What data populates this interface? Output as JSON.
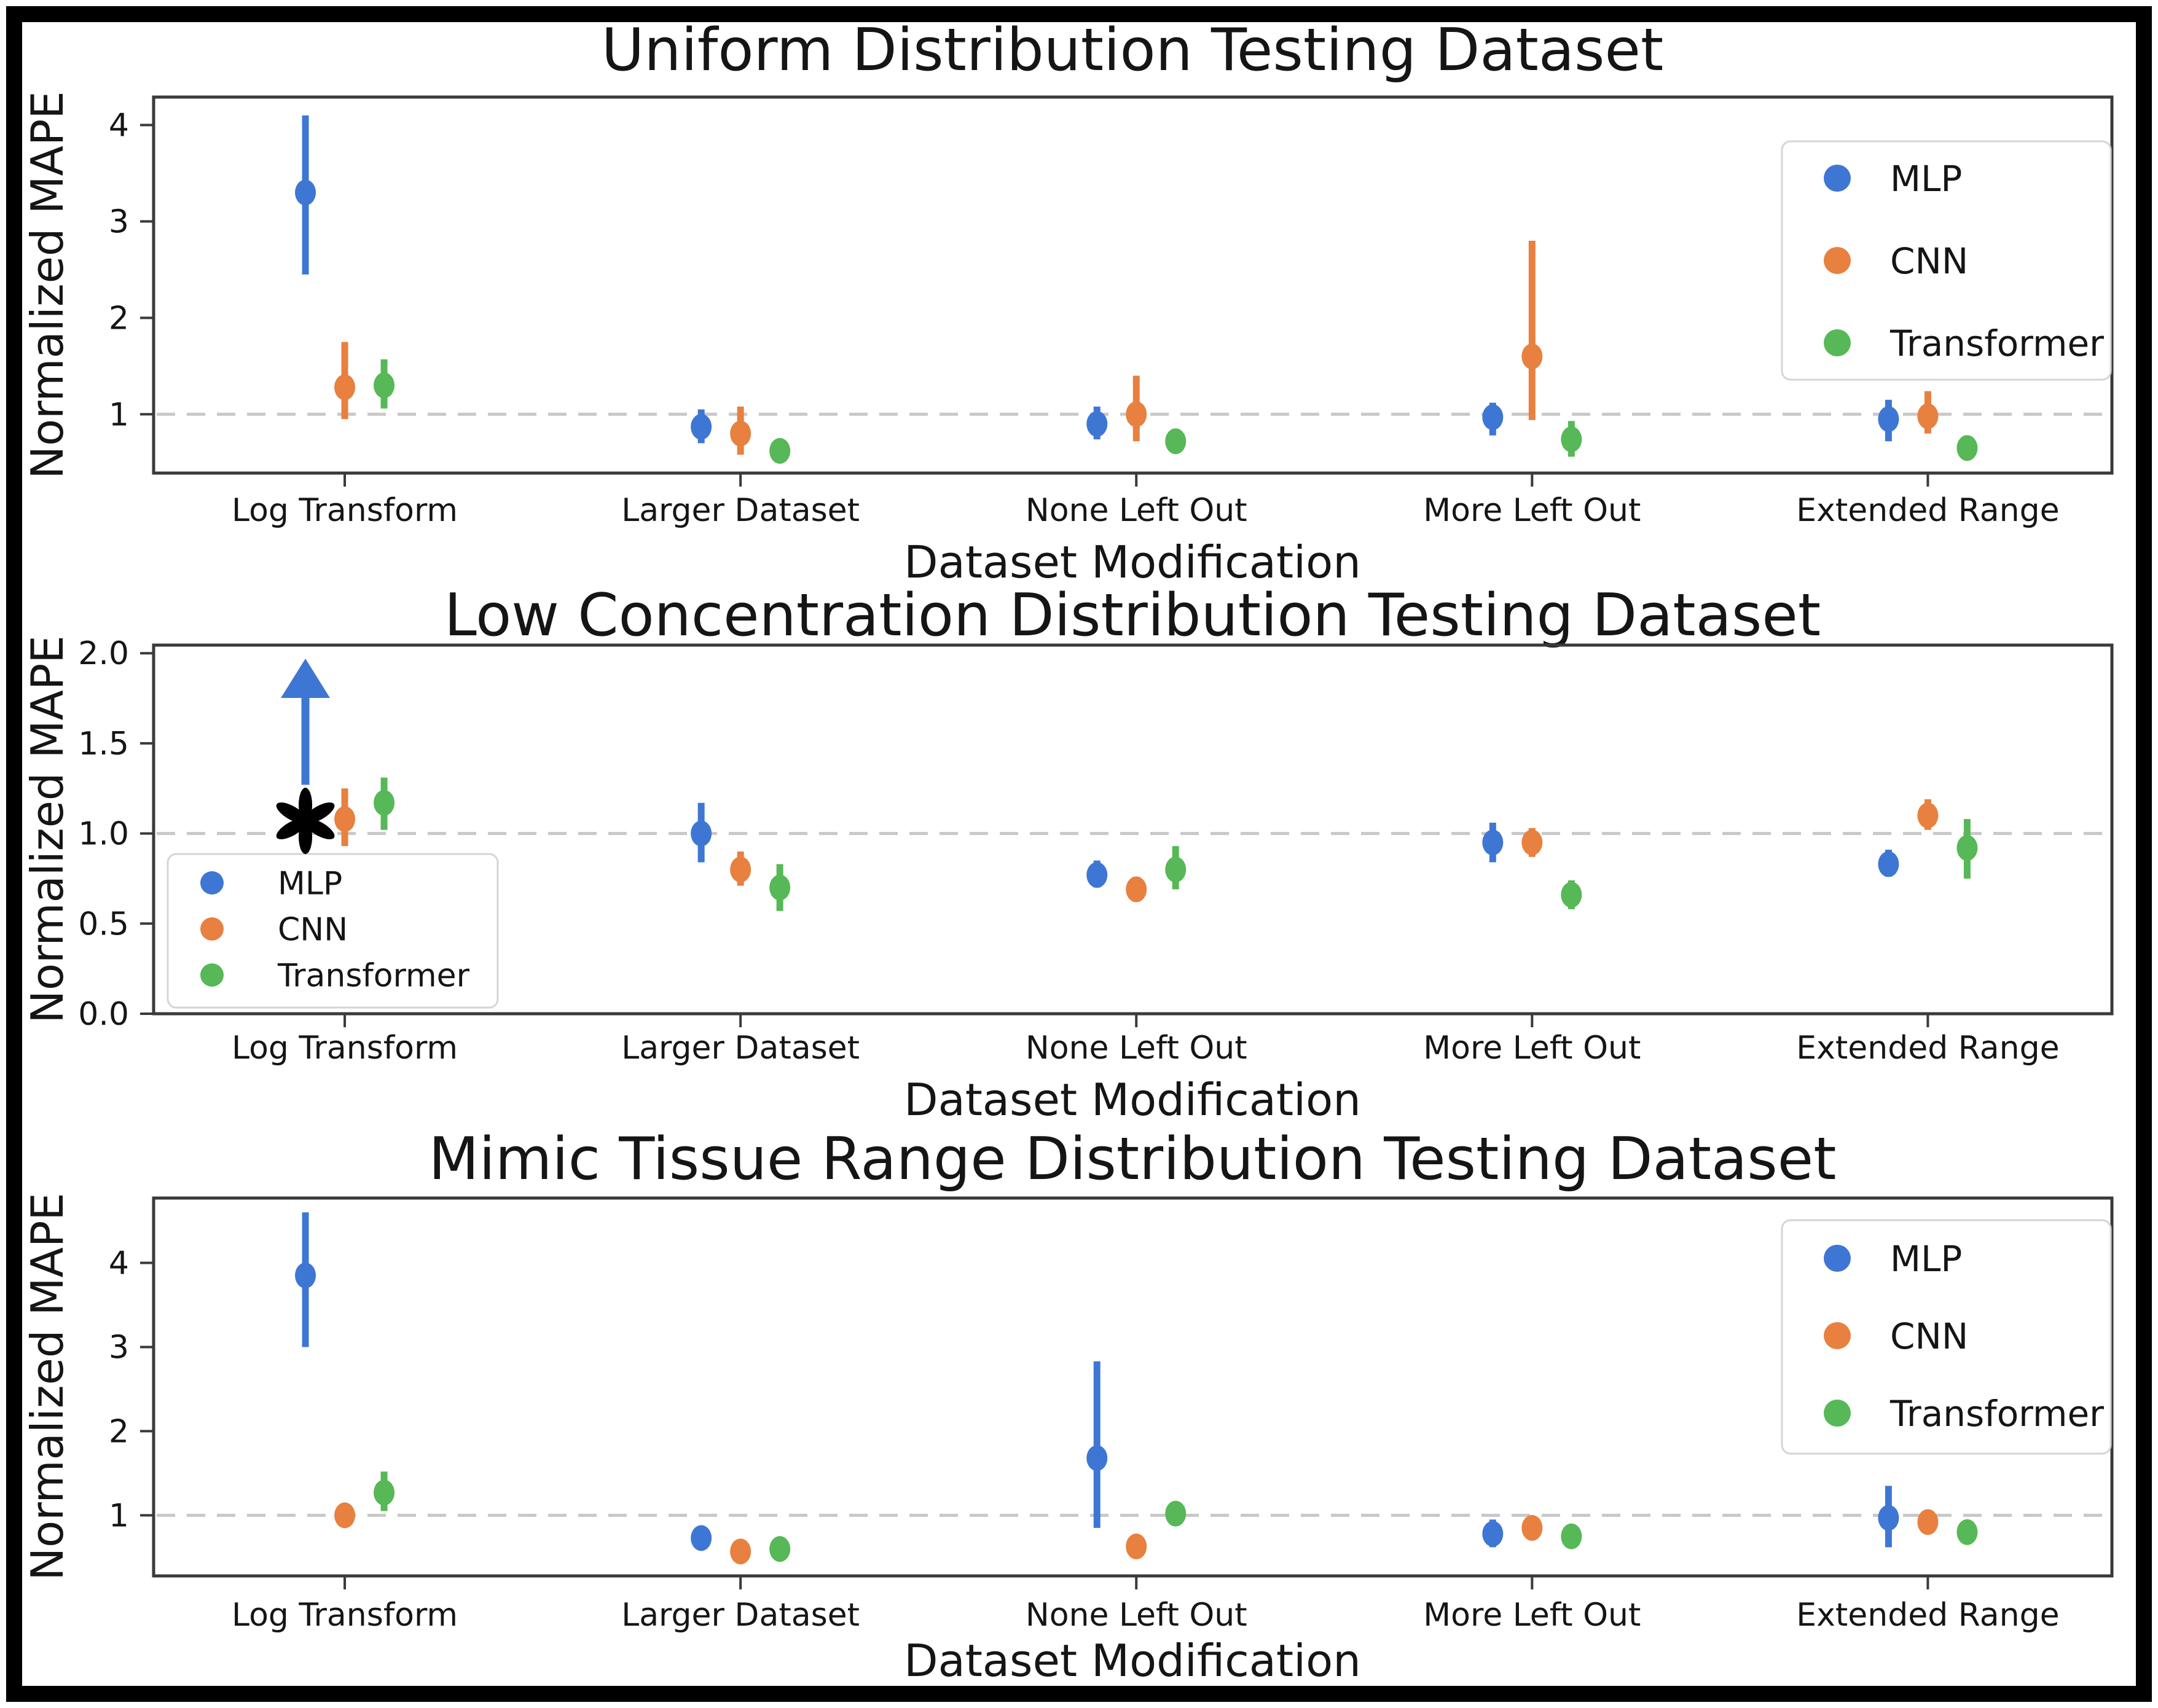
{
  "palette": {
    "mlp_blue": "#3E76D4",
    "cnn_orange": "#E8803F",
    "transformer_green": "#56B856",
    "baseline_gray": "#C8C8C8",
    "axis_gray": "#3A3A3A",
    "legend_border": "#D5D5D5",
    "annotation_black": "#000000"
  },
  "chart_data": [
    {
      "type": "scatter",
      "title": "Uniform Distribution Testing Dataset",
      "xlabel": "Dataset Modification",
      "ylabel": "Normalized MAPE",
      "categories": [
        "Log Transform",
        "Larger Dataset",
        "None Left Out",
        "More Left Out",
        "Extended Range"
      ],
      "ylim": [
        0.39,
        4.29
      ],
      "yticks": [
        1,
        2,
        3,
        4
      ],
      "ytick_labels": [
        "1",
        "2",
        "3",
        "4"
      ],
      "baseline": 1.0,
      "grid": false,
      "legend": {
        "position": "upper right",
        "entries": [
          "MLP",
          "CNN",
          "Transformer"
        ]
      },
      "series": [
        {
          "name": "MLP",
          "color": "#3E76D4",
          "values": [
            3.3,
            0.87,
            0.9,
            0.97,
            0.95
          ],
          "err_low": [
            2.45,
            0.7,
            0.74,
            0.78,
            0.72
          ],
          "err_high": [
            4.1,
            1.05,
            1.08,
            1.12,
            1.15
          ]
        },
        {
          "name": "CNN",
          "color": "#E8803F",
          "values": [
            1.28,
            0.8,
            1.0,
            1.6,
            0.98
          ],
          "err_low": [
            0.95,
            0.58,
            0.72,
            0.94,
            0.8
          ],
          "err_high": [
            1.75,
            1.08,
            1.4,
            2.8,
            1.24
          ]
        },
        {
          "name": "Transformer",
          "color": "#56B856",
          "values": [
            1.3,
            0.62,
            0.72,
            0.74,
            0.65
          ],
          "err_low": [
            1.06,
            0.53,
            0.6,
            0.56,
            0.54
          ],
          "err_high": [
            1.57,
            0.72,
            0.85,
            0.93,
            0.77
          ]
        }
      ]
    },
    {
      "type": "scatter",
      "title": "Low Concentration Distribution Testing Dataset",
      "xlabel": "Dataset Modification",
      "ylabel": "Normalized MAPE",
      "categories": [
        "Log Transform",
        "Larger Dataset",
        "None Left Out",
        "More Left Out",
        "Extended Range"
      ],
      "ylim": [
        0.0,
        2.045
      ],
      "yticks": [
        0,
        0.5,
        1,
        1.5,
        2
      ],
      "ytick_labels": [
        "0.0",
        "0.5",
        "1.0",
        "1.5",
        "2.0"
      ],
      "baseline": 1.0,
      "grid": false,
      "legend": {
        "position": "lower left",
        "entries": [
          "MLP",
          "CNN",
          "Transformer"
        ]
      },
      "series": [
        {
          "name": "MLP",
          "color": "#3E76D4",
          "values": [
            null,
            1.0,
            0.77,
            0.95,
            0.83
          ],
          "err_low": [
            null,
            0.84,
            0.7,
            0.84,
            0.76
          ],
          "err_high": [
            null,
            1.17,
            0.85,
            1.06,
            0.91
          ]
        },
        {
          "name": "CNN",
          "color": "#E8803F",
          "values": [
            1.08,
            0.8,
            0.69,
            0.95,
            1.1
          ],
          "err_low": [
            0.93,
            0.71,
            0.63,
            0.87,
            1.02
          ],
          "err_high": [
            1.25,
            0.9,
            0.76,
            1.03,
            1.19
          ]
        },
        {
          "name": "Transformer",
          "color": "#56B856",
          "values": [
            1.17,
            0.7,
            0.8,
            0.66,
            0.92
          ],
          "err_low": [
            1.02,
            0.57,
            0.69,
            0.58,
            0.75
          ],
          "err_high": [
            1.31,
            0.83,
            0.93,
            0.74,
            1.08
          ]
        }
      ],
      "annotations": [
        {
          "type": "offscale-arrow",
          "series": "MLP",
          "category_index": 0,
          "arrow_from": 1.27,
          "arrow_to": 1.97,
          "symbol": "✱",
          "symbol_y": 1.07
        }
      ]
    },
    {
      "type": "scatter",
      "title": "Mimic Tissue Range Distribution Testing Dataset",
      "xlabel": "Dataset Modification",
      "ylabel": "Normalized MAPE",
      "categories": [
        "Log Transform",
        "Larger Dataset",
        "None Left Out",
        "More Left Out",
        "Extended Range"
      ],
      "ylim": [
        0.28,
        4.77
      ],
      "yticks": [
        1,
        2,
        3,
        4
      ],
      "ytick_labels": [
        "1",
        "2",
        "3",
        "4"
      ],
      "baseline": 1.0,
      "grid": false,
      "legend": {
        "position": "upper right",
        "entries": [
          "MLP",
          "CNN",
          "Transformer"
        ]
      },
      "series": [
        {
          "name": "MLP",
          "color": "#3E76D4",
          "values": [
            3.85,
            0.73,
            1.68,
            0.78,
            0.97
          ],
          "err_low": [
            3.0,
            0.62,
            0.85,
            0.62,
            0.62
          ],
          "err_high": [
            4.6,
            0.86,
            2.83,
            0.95,
            1.35
          ]
        },
        {
          "name": "CNN",
          "color": "#E8803F",
          "values": [
            1.0,
            0.57,
            0.63,
            0.85,
            0.92
          ],
          "err_low": [
            0.87,
            0.49,
            0.52,
            0.79,
            0.82
          ],
          "err_high": [
            1.13,
            0.67,
            0.74,
            0.92,
            1.01
          ]
        },
        {
          "name": "Transformer",
          "color": "#56B856",
          "values": [
            1.27,
            0.6,
            1.02,
            0.75,
            0.8
          ],
          "err_low": [
            1.05,
            0.51,
            0.88,
            0.62,
            0.7
          ],
          "err_high": [
            1.52,
            0.7,
            1.16,
            0.88,
            0.9
          ]
        }
      ]
    }
  ]
}
